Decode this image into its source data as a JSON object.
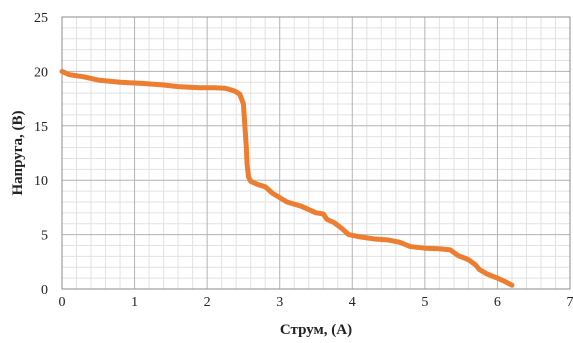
{
  "chart_data": {
    "type": "line",
    "xlabel": "Струм, (А)",
    "ylabel": "Напруга, (В)",
    "xlim": [
      0,
      7
    ],
    "ylim": [
      0,
      25
    ],
    "x_ticks": [
      "0",
      "1",
      "2",
      "3",
      "4",
      "5",
      "6",
      "7"
    ],
    "y_ticks": [
      "0",
      "5",
      "10",
      "15",
      "20",
      "25"
    ],
    "grid": true,
    "minor_grid": true,
    "legend": "none",
    "series": [
      {
        "color": "#ed7d31",
        "points": [
          [
            0.0,
            20.0
          ],
          [
            0.1,
            19.7
          ],
          [
            0.3,
            19.5
          ],
          [
            0.5,
            19.2
          ],
          [
            0.8,
            19.0
          ],
          [
            1.1,
            18.9
          ],
          [
            1.4,
            18.75
          ],
          [
            1.6,
            18.6
          ],
          [
            1.9,
            18.5
          ],
          [
            2.1,
            18.5
          ],
          [
            2.25,
            18.45
          ],
          [
            2.38,
            18.2
          ],
          [
            2.45,
            17.9
          ],
          [
            2.5,
            17.0
          ],
          [
            2.52,
            15.0
          ],
          [
            2.54,
            13.0
          ],
          [
            2.55,
            11.5
          ],
          [
            2.57,
            10.3
          ],
          [
            2.6,
            9.9
          ],
          [
            2.7,
            9.6
          ],
          [
            2.8,
            9.4
          ],
          [
            2.9,
            8.8
          ],
          [
            3.0,
            8.4
          ],
          [
            3.1,
            8.0
          ],
          [
            3.2,
            7.8
          ],
          [
            3.3,
            7.6
          ],
          [
            3.4,
            7.3
          ],
          [
            3.5,
            7.0
          ],
          [
            3.6,
            6.9
          ],
          [
            3.65,
            6.4
          ],
          [
            3.75,
            6.1
          ],
          [
            3.85,
            5.6
          ],
          [
            3.95,
            5.0
          ],
          [
            4.1,
            4.8
          ],
          [
            4.3,
            4.6
          ],
          [
            4.5,
            4.5
          ],
          [
            4.65,
            4.3
          ],
          [
            4.8,
            3.9
          ],
          [
            5.0,
            3.75
          ],
          [
            5.2,
            3.7
          ],
          [
            5.35,
            3.6
          ],
          [
            5.45,
            3.1
          ],
          [
            5.6,
            2.7
          ],
          [
            5.7,
            2.2
          ],
          [
            5.75,
            1.8
          ],
          [
            5.85,
            1.4
          ],
          [
            6.0,
            1.0
          ],
          [
            6.1,
            0.7
          ],
          [
            6.2,
            0.35
          ]
        ]
      }
    ]
  }
}
